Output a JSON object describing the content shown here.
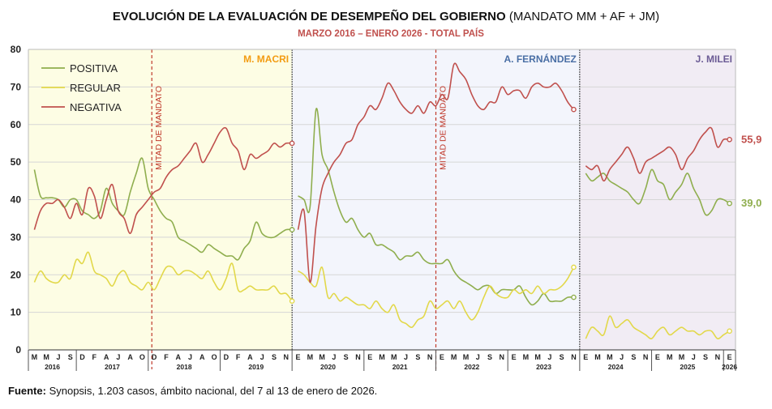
{
  "chart_data": {
    "type": "line",
    "title": "EVOLUCIÓN DE LA EVALUACIÓN DE DESEMPEÑO DEL GOBIERNO",
    "title_suffix": "(MANDATO MM + AF + JM)",
    "subtitle": "MARZO 2016 – ENERO 2026 - TOTAL PAÍS",
    "ylim": [
      0,
      80
    ],
    "yticks": [
      0,
      10,
      20,
      30,
      40,
      50,
      60,
      70,
      80
    ],
    "grid": true,
    "legend_position": "top-left",
    "series_colors": {
      "POSITIVA": "#8fae4e",
      "REGULAR": "#e2d84a",
      "NEGATIVA": "#c0504d"
    },
    "months": [
      "M",
      "M",
      "J",
      "S",
      "D",
      "F",
      "A",
      "J",
      "A",
      "O",
      "D",
      "F",
      "A",
      "J",
      "A",
      "O",
      "D",
      "F",
      "A",
      "J",
      "S",
      "N",
      "E",
      "M",
      "M",
      "J",
      "S",
      "N",
      "E",
      "M",
      "M",
      "J",
      "S",
      "N",
      "E",
      "M",
      "M",
      "J",
      "S",
      "N",
      "E",
      "M",
      "M",
      "J",
      "S",
      "N",
      "E",
      "M",
      "M",
      "J",
      "S",
      "N",
      "E",
      "M",
      "M",
      "J",
      "S",
      "N",
      "E"
    ],
    "years": [
      {
        "label": "2016",
        "start": 0,
        "end": 4
      },
      {
        "label": "2017",
        "start": 4,
        "end": 10
      },
      {
        "label": "2018",
        "start": 10,
        "end": 16
      },
      {
        "label": "2019",
        "start": 16,
        "end": 22
      },
      {
        "label": "2020",
        "start": 22,
        "end": 28
      },
      {
        "label": "2021",
        "start": 28,
        "end": 34
      },
      {
        "label": "2022",
        "start": 34,
        "end": 40
      },
      {
        "label": "2023",
        "start": 40,
        "end": 46
      },
      {
        "label": "2024",
        "start": 46,
        "end": 52
      },
      {
        "label": "2025",
        "start": 52,
        "end": 58
      },
      {
        "label": "2026",
        "start": 58,
        "end": 59
      }
    ],
    "periods": [
      {
        "label": "M. MACRI",
        "start": 0,
        "end": 22,
        "color": "#f39c12",
        "bg": "#fdfde4"
      },
      {
        "label": "A. FERNÁNDEZ",
        "start": 22,
        "end": 46,
        "color": "#4a6fa5",
        "bg": "#f3f5fc"
      },
      {
        "label": "J. MILEI",
        "start": 46,
        "end": 59,
        "color": "#6b5b95",
        "bg": "#f1ecf4"
      }
    ],
    "midterms": [
      {
        "label": "MITAD DE MANDATO",
        "index": 10.3
      },
      {
        "label": "MITAD DE MANDATO",
        "index": 34
      }
    ],
    "series": [
      {
        "name": "POSITIVA",
        "segments": [
          {
            "x": [
              0,
              0.5,
              1,
              1.5,
              2,
              2.5,
              3,
              3.5,
              4,
              4.5,
              5,
              5.5,
              6,
              6.5,
              7,
              7.5,
              8,
              8.5,
              9,
              9.5,
              10,
              10.5,
              11,
              11.5,
              12,
              12.5,
              13,
              13.5,
              14,
              14.5,
              15,
              15.5,
              16,
              16.5,
              17,
              17.5,
              18,
              18.5,
              19,
              19.5,
              20,
              20.5,
              21,
              21.5
            ],
            "y": [
              48,
              41,
              40.5,
              40.5,
              40,
              38,
              40,
              40,
              37,
              36,
              35,
              37,
              43,
              39,
              37,
              36,
              42,
              47,
              51,
              43,
              40,
              37,
              35,
              34,
              30,
              29,
              28,
              27,
              26,
              28,
              27,
              26,
              25,
              25,
              24,
              27,
              29,
              34,
              31,
              30,
              30,
              31,
              32,
              32
            ]
          },
          {
            "x": [
              22,
              22.5,
              23,
              23.5,
              24,
              24.5,
              25,
              25.5,
              26,
              26.5,
              27,
              27.5,
              28,
              28.5,
              29,
              29.5,
              30,
              30.5,
              31,
              31.5,
              32,
              32.5,
              33,
              33.5,
              34,
              34.5,
              35,
              35.5,
              36,
              36.5,
              37,
              37.5,
              38,
              38.5,
              39,
              39.5,
              40,
              40.5,
              41,
              41.5,
              42,
              42.5,
              43,
              43.5,
              44,
              44.5,
              45
            ],
            "y": [
              41,
              40,
              38,
              64,
              52,
              48,
              42,
              37,
              34,
              35,
              32,
              30,
              31,
              28,
              28,
              27,
              26,
              24,
              25,
              25,
              26,
              24,
              23,
              23,
              23,
              24,
              21,
              19,
              18,
              17,
              16,
              17,
              17,
              15,
              16,
              16,
              16,
              17,
              14,
              12,
              13,
              15,
              13,
              13,
              13,
              14,
              14
            ]
          },
          {
            "x": [
              46,
              46.5,
              47,
              47.5,
              48,
              48.5,
              49,
              49.5,
              50,
              50.5,
              51,
              51.5,
              52,
              52.5,
              53,
              53.5,
              54,
              54.5,
              55,
              55.5,
              56,
              56.5,
              57,
              57.5,
              58
            ],
            "y": [
              47,
              45,
              46,
              47,
              45,
              44,
              43,
              42,
              40,
              39,
              43,
              48,
              45,
              44,
              40,
              42,
              44,
              47,
              43,
              40,
              36,
              37,
              40,
              40,
              39
            ]
          }
        ],
        "end_value": "39,0"
      },
      {
        "name": "REGULAR",
        "segments": [
          {
            "x": [
              0,
              0.5,
              1,
              1.5,
              2,
              2.5,
              3,
              3.5,
              4,
              4.5,
              5,
              5.5,
              6,
              6.5,
              7,
              7.5,
              8,
              8.5,
              9,
              9.5,
              10,
              10.5,
              11,
              11.5,
              12,
              12.5,
              13,
              13.5,
              14,
              14.5,
              15,
              15.5,
              16,
              16.5,
              17,
              17.5,
              18,
              18.5,
              19,
              19.5,
              20,
              20.5,
              21,
              21.5
            ],
            "y": [
              18,
              21,
              19,
              18,
              18,
              20,
              19,
              24,
              23,
              26,
              21,
              20,
              19,
              17,
              20,
              21,
              18,
              17,
              16,
              18,
              16,
              19,
              22,
              22,
              20,
              21,
              21,
              20,
              19,
              21,
              18,
              16,
              19,
              23,
              16,
              16,
              17,
              16,
              16,
              16,
              17,
              15,
              15,
              13
            ]
          },
          {
            "x": [
              22,
              22.5,
              23,
              23.5,
              24,
              24.5,
              25,
              25.5,
              26,
              26.5,
              27,
              27.5,
              28,
              28.5,
              29,
              29.5,
              30,
              30.5,
              31,
              31.5,
              32,
              32.5,
              33,
              33.5,
              34,
              34.5,
              35,
              35.5,
              36,
              36.5,
              37,
              37.5,
              38,
              38.5,
              39,
              39.5,
              40,
              40.5,
              41,
              41.5,
              42,
              42.5,
              43,
              43.5,
              44,
              44.5,
              45
            ],
            "y": [
              21,
              20,
              18,
              17,
              22,
              14,
              15,
              13,
              14,
              13,
              12,
              12,
              11,
              13,
              11,
              10,
              12,
              8,
              7,
              6,
              8,
              9,
              13,
              11,
              12,
              13,
              11,
              13,
              10,
              8,
              10,
              14,
              17,
              15,
              14,
              14,
              16,
              15,
              16,
              15,
              17,
              15,
              16,
              16,
              17,
              19,
              22
            ]
          },
          {
            "x": [
              46,
              46.5,
              47,
              47.5,
              48,
              48.5,
              49,
              49.5,
              50,
              50.5,
              51,
              51.5,
              52,
              52.5,
              53,
              53.5,
              54,
              54.5,
              55,
              55.5,
              56,
              56.5,
              57,
              57.5,
              58
            ],
            "y": [
              3,
              6,
              5,
              4,
              9,
              6,
              7,
              8,
              6,
              5,
              4,
              3,
              5,
              6,
              4,
              5,
              6,
              5,
              5,
              4,
              5,
              5,
              3,
              4,
              5
            ]
          }
        ]
      },
      {
        "name": "NEGATIVA",
        "segments": [
          {
            "x": [
              0,
              0.5,
              1,
              1.5,
              2,
              2.5,
              3,
              3.5,
              4,
              4.5,
              5,
              5.5,
              6,
              6.5,
              7,
              7.5,
              8,
              8.5,
              9,
              9.5,
              10,
              10.5,
              11,
              11.5,
              12,
              12.5,
              13,
              13.5,
              14,
              14.5,
              15,
              15.5,
              16,
              16.5,
              17,
              17.5,
              18,
              18.5,
              19,
              19.5,
              20,
              20.5,
              21,
              21.5
            ],
            "y": [
              32,
              37,
              39,
              39,
              40,
              38,
              35,
              39,
              36,
              43,
              41,
              35,
              40,
              44,
              37,
              35,
              31,
              36,
              38,
              40,
              42,
              43,
              46,
              48,
              49,
              51,
              53,
              55,
              50,
              52,
              55,
              58,
              59,
              55,
              53,
              48,
              52,
              51,
              52,
              53,
              55,
              54,
              55,
              55
            ]
          },
          {
            "x": [
              22,
              22.5,
              23,
              23.5,
              24,
              24.5,
              25,
              25.5,
              26,
              26.5,
              27,
              27.5,
              28,
              28.5,
              29,
              29.5,
              30,
              30.5,
              31,
              31.5,
              32,
              32.5,
              33,
              33.5,
              34,
              34.5,
              35,
              35.5,
              36,
              36.5,
              37,
              37.5,
              38,
              38.5,
              39,
              39.5,
              40,
              40.5,
              41,
              41.5,
              42,
              42.5,
              43,
              43.5,
              44,
              44.5,
              45
            ],
            "y": [
              32,
              37,
              18,
              33,
              43,
              47,
              50,
              52,
              55,
              56,
              60,
              62,
              65,
              64,
              67,
              71,
              69,
              66,
              64,
              63,
              65,
              63,
              66,
              65,
              68,
              67,
              76,
              74,
              72,
              68,
              65,
              64,
              66,
              66,
              70,
              68,
              69,
              69,
              67,
              70,
              71,
              70,
              70,
              71,
              69,
              66,
              64
            ]
          },
          {
            "x": [
              46,
              46.5,
              47,
              47.5,
              48,
              48.5,
              49,
              49.5,
              50,
              50.5,
              51,
              51.5,
              52,
              52.5,
              53,
              53.5,
              54,
              54.5,
              55,
              55.5,
              56,
              56.5,
              57,
              57.5,
              58
            ],
            "y": [
              49,
              48,
              49,
              45,
              48,
              50,
              52,
              54,
              51,
              47,
              50,
              51,
              52,
              53,
              54,
              52,
              48,
              51,
              53,
              56,
              58,
              59,
              54,
              56,
              56
            ]
          }
        ],
        "end_value": "55,9"
      }
    ]
  },
  "source": {
    "label": "Fuente:",
    "text": " Synopsis, 1.203 casos, ámbito nacional, del 7 al 13 de enero de 2026."
  }
}
